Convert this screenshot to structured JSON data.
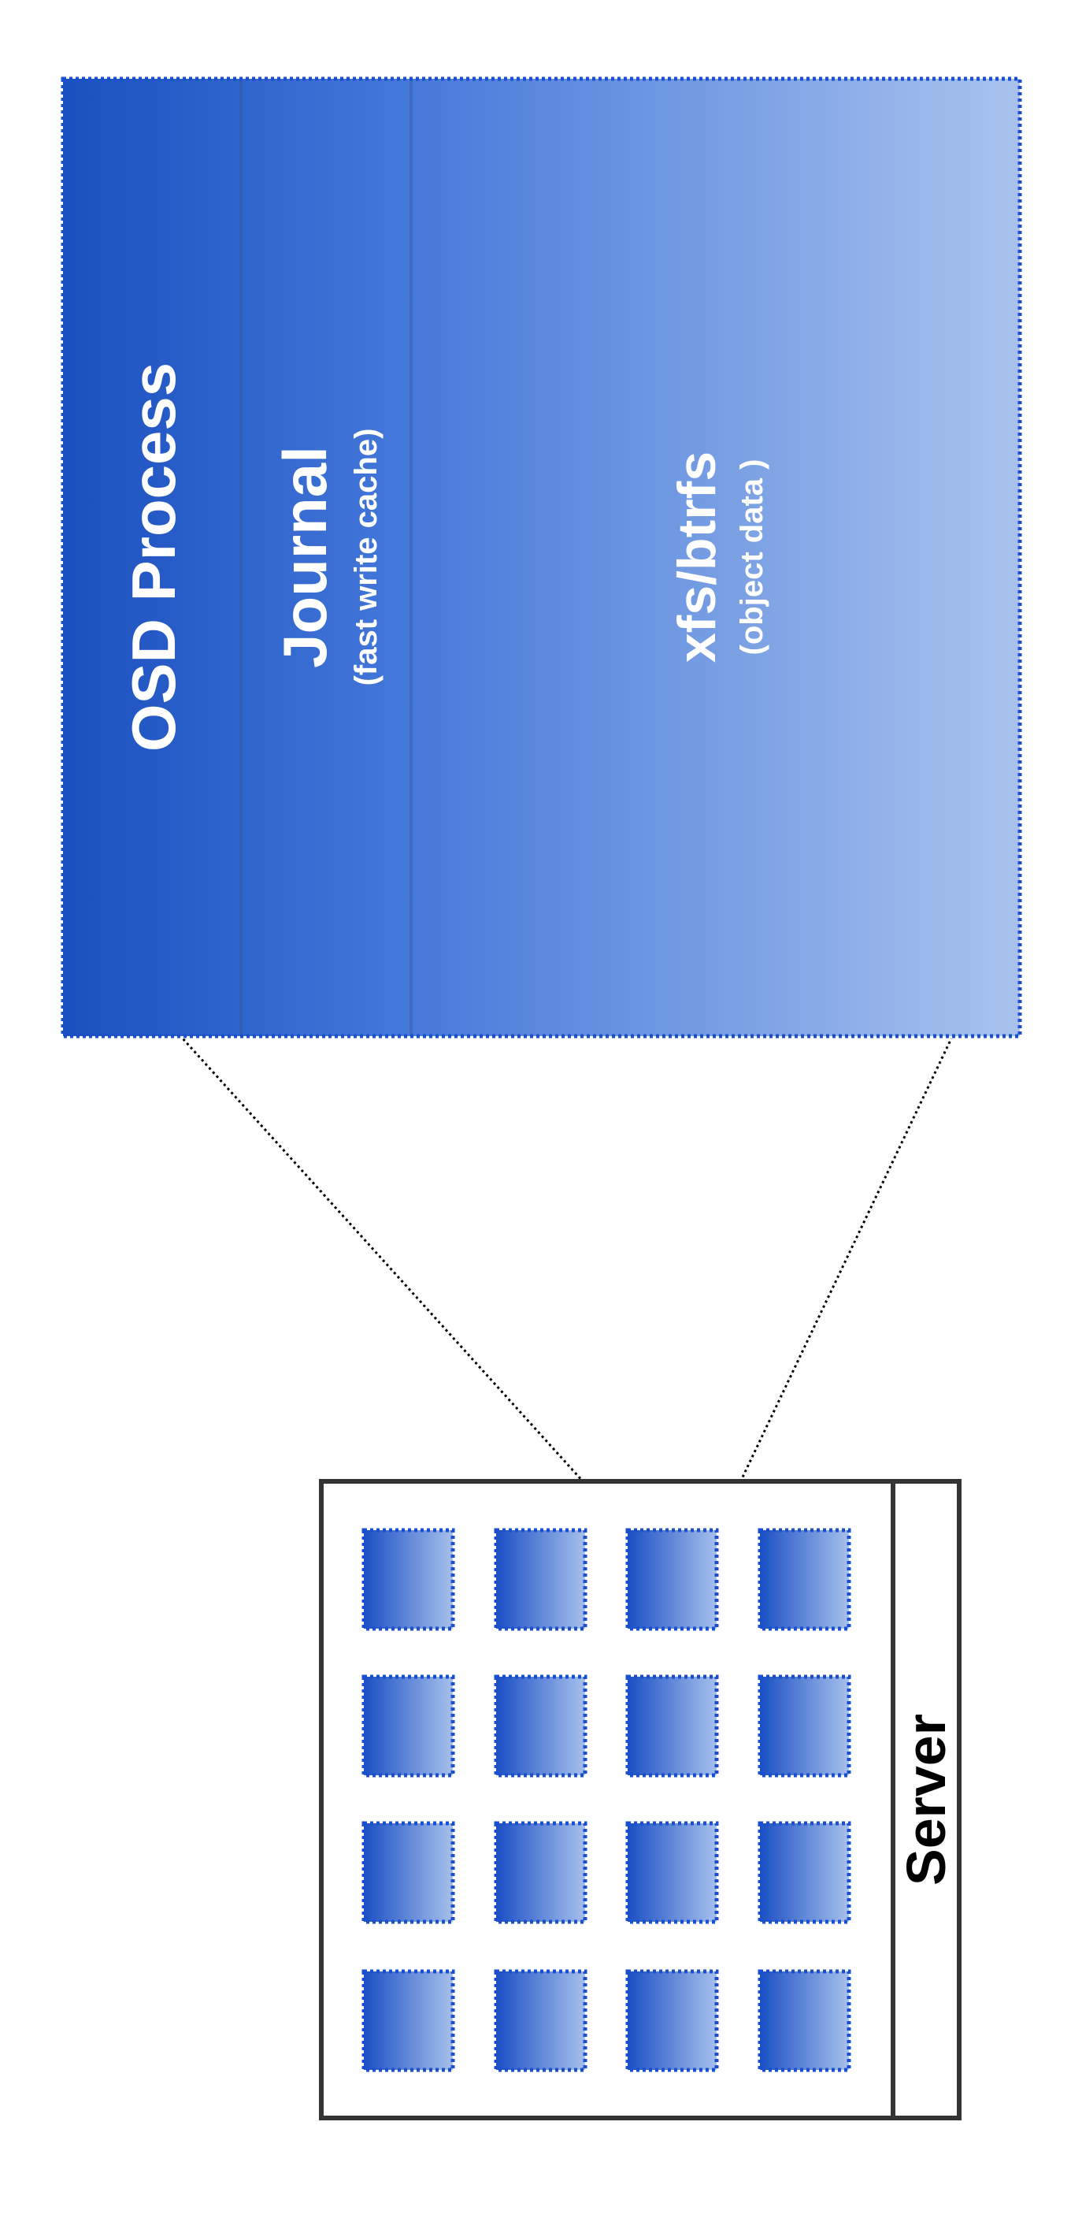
{
  "osd": {
    "process_label": "OSD Process",
    "journal_label": "Journal",
    "journal_sublabel": "(fast write cache)",
    "fs_label": "xfs/btrfs",
    "fs_sublabel": "(object data )"
  },
  "server": {
    "label": "Server",
    "disk_grid": {
      "rows": 4,
      "columns": 4
    }
  },
  "colors": {
    "osd_dark": "#1a4fbf",
    "osd_light": "#a6c0ec",
    "disk_border": "#1a4fd0",
    "server_border": "#333333",
    "connector": "#000000",
    "label_light": "#ffffff",
    "label_dark": "#000000"
  }
}
